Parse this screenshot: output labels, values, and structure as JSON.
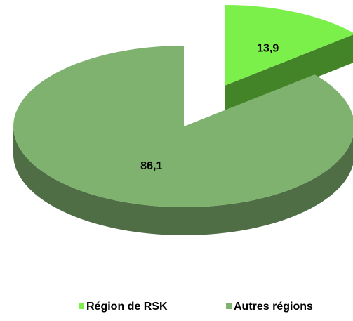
{
  "chart_data": {
    "type": "pie",
    "categories": [
      "Région de RSK",
      "Autres régions"
    ],
    "values": [
      13.9,
      86.1
    ],
    "value_labels": [
      "13,9",
      "86,1"
    ],
    "colors": [
      "#7cf04a",
      "#7fb26f"
    ],
    "exploded": [
      true,
      false
    ],
    "legend": "bottom",
    "three_d": true
  }
}
